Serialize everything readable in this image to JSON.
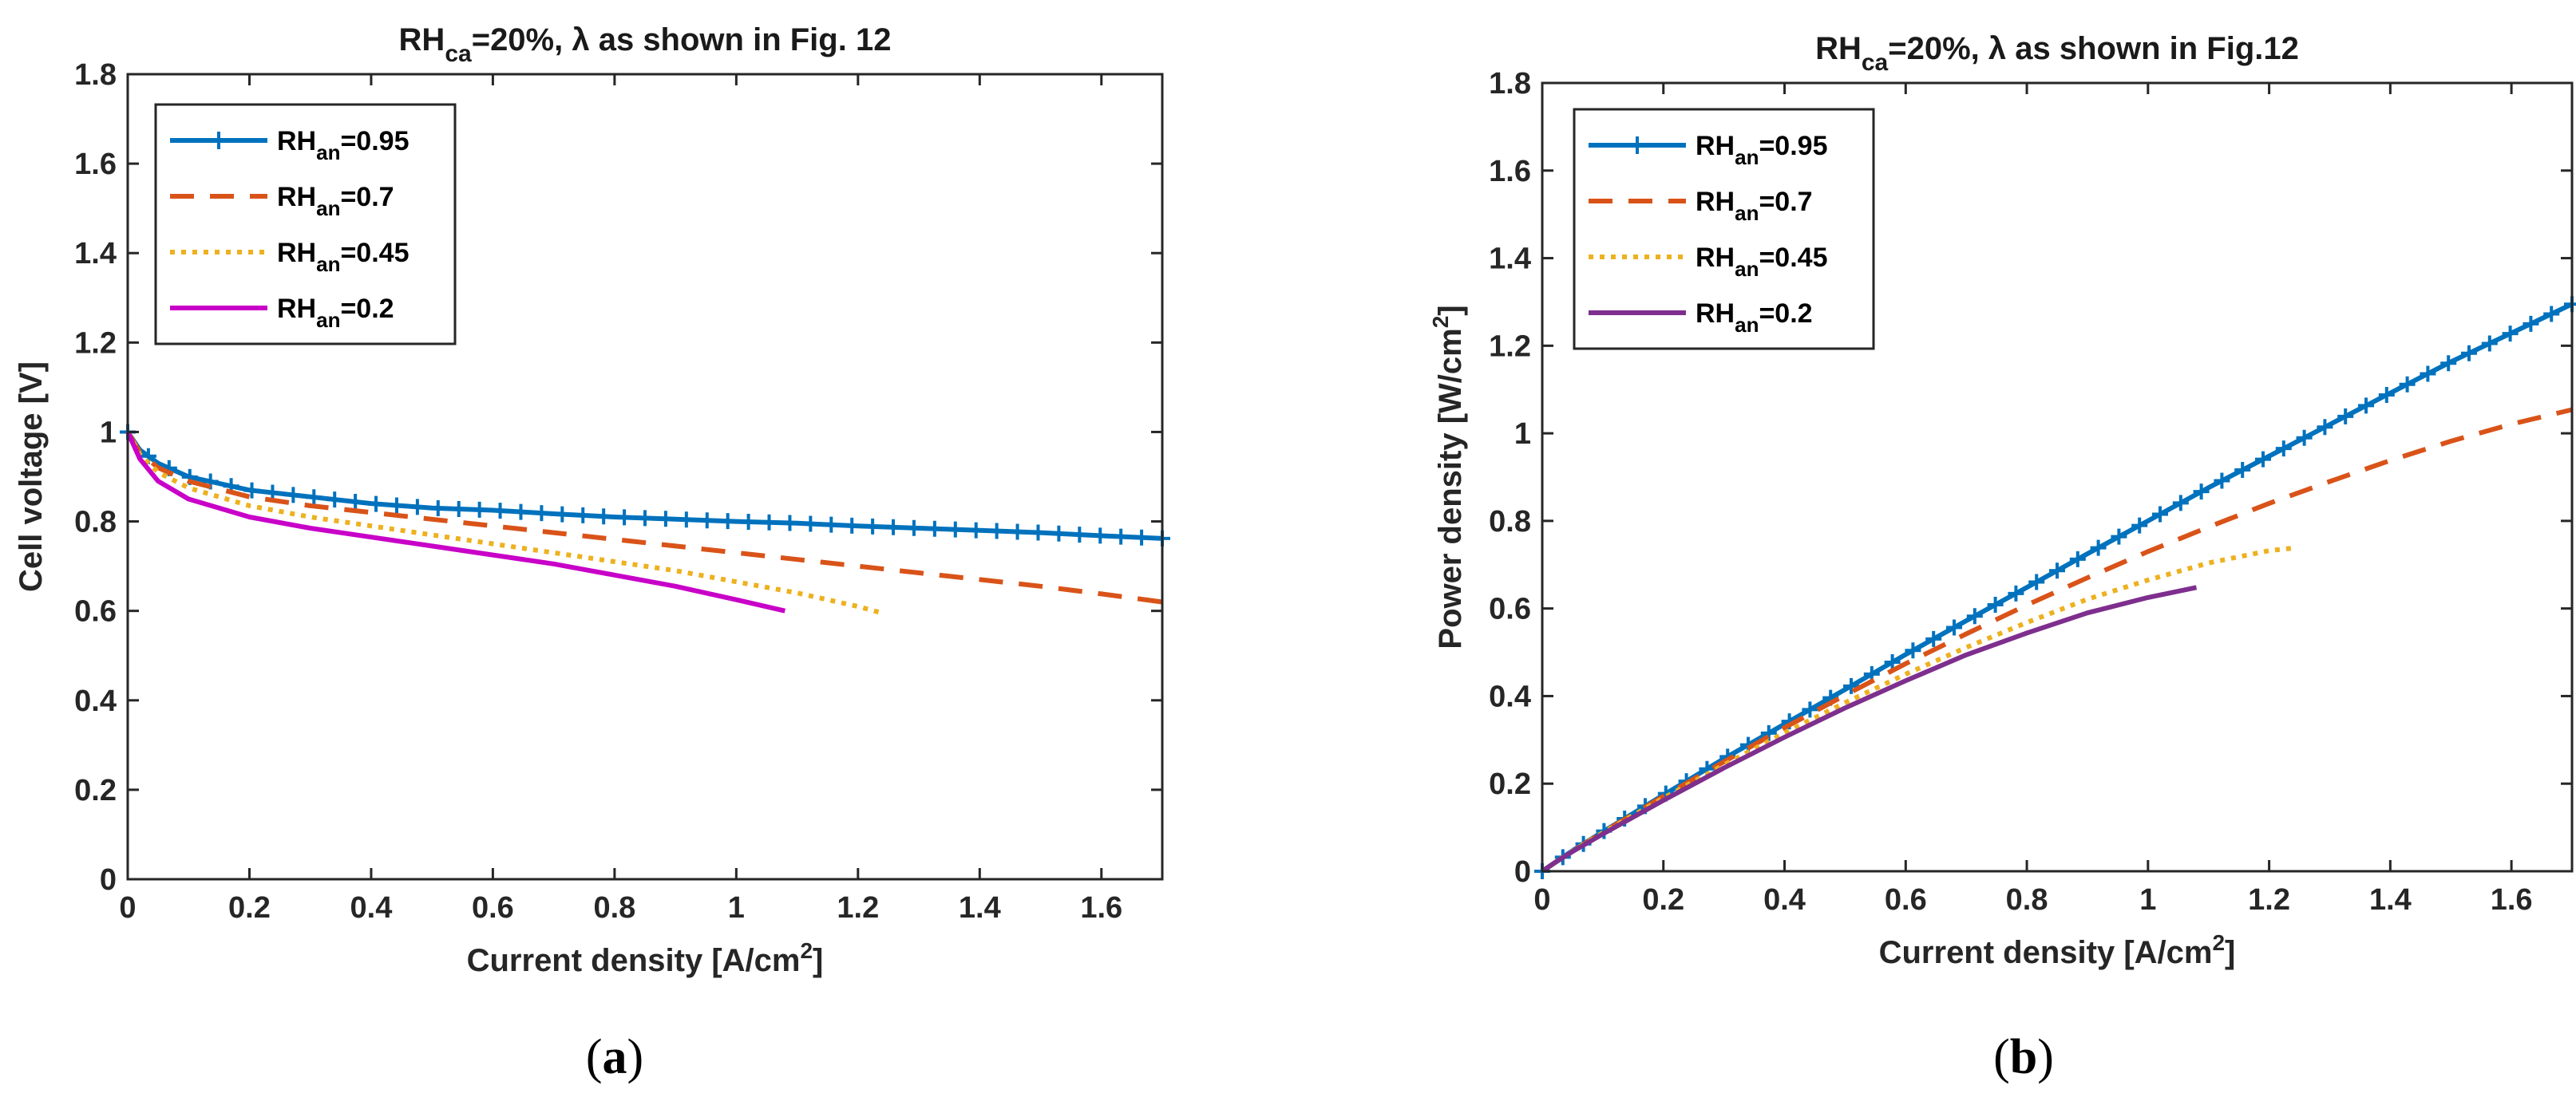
{
  "chart_data": [
    {
      "type": "line",
      "panel_label": "a",
      "title": {
        "main": "RH",
        "sub": "ca",
        "rest": "=20%, λ as shown in Fig. 12"
      },
      "xlabel": {
        "main": "Current density [A/cm",
        "sup": "2",
        "end": "]"
      },
      "ylabel": "Cell voltage [V]",
      "xlim": [
        0,
        1.7
      ],
      "ylim": [
        0,
        1.8
      ],
      "xticks": [
        0,
        0.2,
        0.4,
        0.6,
        0.8,
        1,
        1.2,
        1.4,
        1.6
      ],
      "xtick_labels": [
        "0",
        "0.2",
        "0.4",
        "0.6",
        "0.8",
        "1",
        "1.2",
        "1.4",
        "1.6"
      ],
      "yticks": [
        0,
        0.2,
        0.4,
        0.6,
        0.8,
        1,
        1.2,
        1.4,
        1.6,
        1.8
      ],
      "ytick_labels": [
        "0",
        "0.2",
        "0.4",
        "0.6",
        "0.8",
        "1",
        "1.2",
        "1.4",
        "1.6",
        "1.8"
      ],
      "grid": false,
      "legend_position": "top-left",
      "series": [
        {
          "name": "RH_an=0.95",
          "legend": {
            "main": "RH",
            "sub": "an",
            "rest": "=0.95"
          },
          "color": "#0072BD",
          "style": "solid-plus",
          "x": [
            0,
            0.02,
            0.05,
            0.1,
            0.2,
            0.3,
            0.4,
            0.5,
            0.6,
            0.7,
            0.8,
            0.9,
            1.0,
            1.1,
            1.2,
            1.3,
            1.4,
            1.5,
            1.6,
            1.7
          ],
          "y": [
            1.0,
            0.96,
            0.93,
            0.9,
            0.87,
            0.855,
            0.84,
            0.83,
            0.825,
            0.817,
            0.81,
            0.805,
            0.8,
            0.796,
            0.79,
            0.785,
            0.78,
            0.775,
            0.768,
            0.762
          ]
        },
        {
          "name": "RH_an=0.7",
          "legend": {
            "main": "RH",
            "sub": "an",
            "rest": "=0.7"
          },
          "color": "#D95319",
          "style": "dashed",
          "x": [
            0,
            0.02,
            0.05,
            0.1,
            0.2,
            0.3,
            0.4,
            0.5,
            0.6,
            0.7,
            0.8,
            0.9,
            1.0,
            1.1,
            1.2,
            1.3,
            1.4,
            1.5,
            1.6,
            1.7
          ],
          "y": [
            1.0,
            0.955,
            0.92,
            0.89,
            0.855,
            0.835,
            0.82,
            0.805,
            0.79,
            0.775,
            0.76,
            0.745,
            0.73,
            0.715,
            0.7,
            0.685,
            0.67,
            0.655,
            0.638,
            0.62
          ]
        },
        {
          "name": "RH_an=0.45",
          "legend": {
            "main": "RH",
            "sub": "an",
            "rest": "=0.45"
          },
          "color": "#EDB120",
          "style": "dotted",
          "x": [
            0,
            0.02,
            0.05,
            0.1,
            0.2,
            0.3,
            0.4,
            0.5,
            0.6,
            0.7,
            0.8,
            0.9,
            1.0,
            1.1,
            1.2,
            1.24
          ],
          "y": [
            1.0,
            0.95,
            0.91,
            0.875,
            0.835,
            0.81,
            0.79,
            0.77,
            0.75,
            0.73,
            0.71,
            0.69,
            0.665,
            0.64,
            0.61,
            0.595
          ]
        },
        {
          "name": "RH_an=0.2",
          "legend": {
            "main": "RH",
            "sub": "an",
            "rest": "=0.2"
          },
          "color": "#C800C8",
          "style": "solid",
          "x": [
            0,
            0.02,
            0.05,
            0.1,
            0.2,
            0.3,
            0.4,
            0.5,
            0.6,
            0.7,
            0.8,
            0.9,
            1.0,
            1.08
          ],
          "y": [
            1.0,
            0.94,
            0.89,
            0.85,
            0.81,
            0.785,
            0.765,
            0.745,
            0.725,
            0.705,
            0.68,
            0.655,
            0.625,
            0.6
          ]
        }
      ]
    },
    {
      "type": "line",
      "panel_label": "b",
      "title": {
        "main": "RH",
        "sub": "ca",
        "rest": "=20%, λ as shown in Fig.12"
      },
      "xlabel": {
        "main": "Current density [A/cm",
        "sup": "2",
        "end": "]"
      },
      "ylabel": {
        "main": "Power density [W/cm",
        "sup": "2",
        "end": "]"
      },
      "xlim": [
        0,
        1.7
      ],
      "ylim": [
        0,
        1.8
      ],
      "xticks": [
        0,
        0.2,
        0.4,
        0.6,
        0.8,
        1,
        1.2,
        1.4,
        1.6
      ],
      "xtick_labels": [
        "0",
        "0.2",
        "0.4",
        "0.6",
        "0.8",
        "1",
        "1.2",
        "1.4",
        "1.6"
      ],
      "yticks": [
        0,
        0.2,
        0.4,
        0.6,
        0.8,
        1,
        1.2,
        1.4,
        1.6,
        1.8
      ],
      "ytick_labels": [
        "0",
        "0.2",
        "0.4",
        "0.6",
        "0.8",
        "1",
        "1.2",
        "1.4",
        "1.6",
        "1.8"
      ],
      "grid": false,
      "legend_position": "top-left",
      "series": [
        {
          "name": "RH_an=0.95",
          "legend": {
            "main": "RH",
            "sub": "an",
            "rest": "=0.95"
          },
          "color": "#0072BD",
          "style": "solid-plus",
          "x": [
            0,
            0.02,
            0.05,
            0.1,
            0.2,
            0.3,
            0.4,
            0.5,
            0.6,
            0.7,
            0.8,
            0.9,
            1.0,
            1.1,
            1.2,
            1.3,
            1.4,
            1.5,
            1.6,
            1.7
          ],
          "y": [
            0,
            0.019,
            0.047,
            0.09,
            0.174,
            0.257,
            0.336,
            0.415,
            0.495,
            0.572,
            0.648,
            0.725,
            0.8,
            0.876,
            0.948,
            1.02,
            1.092,
            1.163,
            1.229,
            1.295
          ]
        },
        {
          "name": "RH_an=0.7",
          "legend": {
            "main": "RH",
            "sub": "an",
            "rest": "=0.7"
          },
          "color": "#D95319",
          "style": "dashed",
          "x": [
            0,
            0.02,
            0.05,
            0.1,
            0.2,
            0.3,
            0.4,
            0.5,
            0.6,
            0.7,
            0.8,
            0.9,
            1.0,
            1.1,
            1.2,
            1.3,
            1.4,
            1.5,
            1.6,
            1.7
          ],
          "y": [
            0,
            0.019,
            0.046,
            0.089,
            0.171,
            0.25,
            0.328,
            0.402,
            0.474,
            0.542,
            0.608,
            0.67,
            0.73,
            0.786,
            0.84,
            0.89,
            0.938,
            0.982,
            1.021,
            1.054
          ]
        },
        {
          "name": "RH_an=0.45",
          "legend": {
            "main": "RH",
            "sub": "an",
            "rest": "=0.45"
          },
          "color": "#EDB120",
          "style": "dotted",
          "x": [
            0,
            0.02,
            0.05,
            0.1,
            0.2,
            0.3,
            0.4,
            0.5,
            0.6,
            0.7,
            0.8,
            0.9,
            1.0,
            1.1,
            1.2,
            1.24
          ],
          "y": [
            0,
            0.019,
            0.046,
            0.088,
            0.167,
            0.243,
            0.316,
            0.385,
            0.45,
            0.511,
            0.568,
            0.621,
            0.665,
            0.704,
            0.732,
            0.738
          ]
        },
        {
          "name": "RH_an=0.2",
          "legend": {
            "main": "RH",
            "sub": "an",
            "rest": "=0.2"
          },
          "color": "#7E2F8E",
          "style": "solid",
          "x": [
            0,
            0.02,
            0.05,
            0.1,
            0.2,
            0.3,
            0.4,
            0.5,
            0.6,
            0.7,
            0.8,
            0.9,
            1.0,
            1.08
          ],
          "y": [
            0,
            0.019,
            0.045,
            0.085,
            0.162,
            0.236,
            0.306,
            0.373,
            0.435,
            0.494,
            0.544,
            0.59,
            0.625,
            0.648
          ]
        }
      ]
    }
  ]
}
